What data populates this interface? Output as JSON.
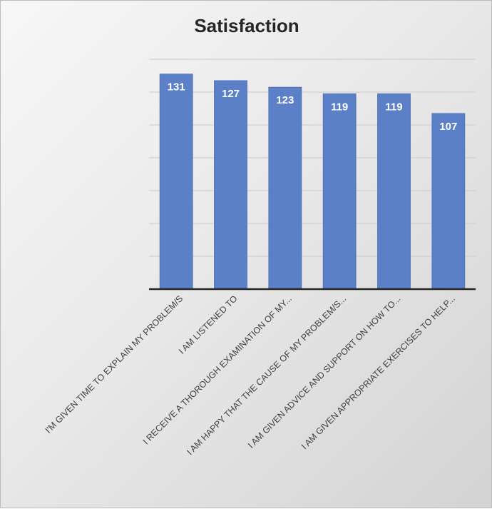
{
  "chart_data": {
    "type": "bar",
    "title": "Satisfaction",
    "categories": [
      "I'M GIVEN TIME TO EXPLAIN MY PROBLEM/S",
      "I AM LISTENED TO",
      "I RECEIVE A THOROUGH EXAMINATION OF MY...",
      "I AM HAPPY THAT THE CAUSE OF MY PROBLEM/S...",
      "I AM GIVEN ADVICE AND SUPPORT ON HOW TO...",
      "I AM GIVEN APPROPRIATE EXERCISES TO HELP..."
    ],
    "values": [
      131,
      127,
      123,
      119,
      119,
      107
    ],
    "ylim": [
      0,
      140
    ],
    "gridlines": true,
    "y_axis_labels_shown": false,
    "legend": "none",
    "data_labels": "inside-end",
    "colors": {
      "bar": "#5b80c8",
      "bar_border": "#4a6fb5",
      "grid": "#d0d0d0",
      "axis": "#262626",
      "title": "#262626"
    }
  }
}
